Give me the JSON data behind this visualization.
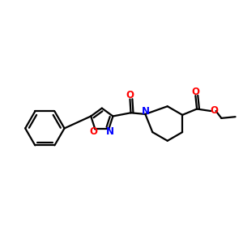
{
  "bg_color": "#ffffff",
  "bond_color": "#000000",
  "N_color": "#0000ff",
  "O_color": "#ff0000",
  "line_width": 1.6,
  "font_size_atom": 8.5,
  "xlim": [
    -0.68,
    0.72
  ],
  "ylim": [
    -0.18,
    0.32
  ]
}
